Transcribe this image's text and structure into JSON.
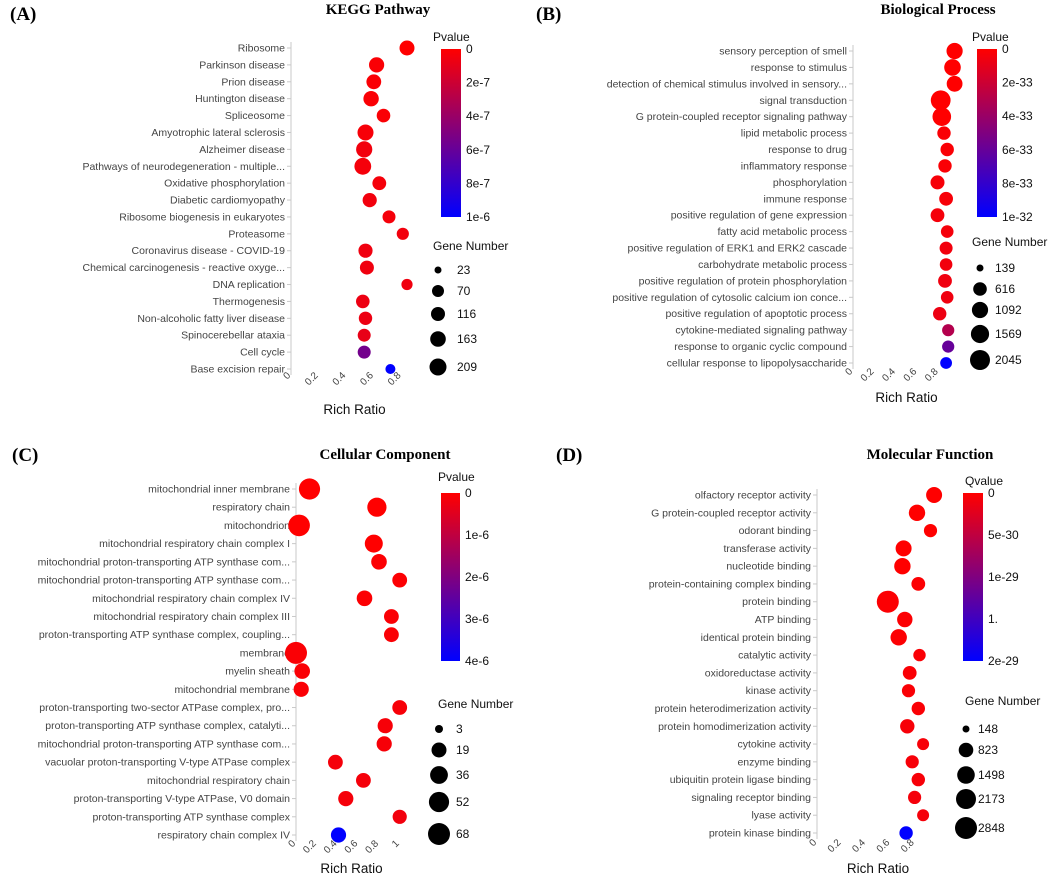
{
  "colors": {
    "low": "#ff0000",
    "high": "#0000ff"
  },
  "chart_data": [
    {
      "type": "scatter",
      "letter": "(A)",
      "title": "KEGG Pathway",
      "xlabel": "Rich Ratio",
      "xlim": [
        0,
        0.92
      ],
      "xticks": [
        "0",
        "0.2",
        "0.4",
        "0.6",
        "0.8"
      ],
      "xtick_values": [
        0,
        0.2,
        0.4,
        0.6,
        0.8
      ],
      "color_legend_title": "Pvalue",
      "color_ticks": [
        "0",
        "2e-7",
        "4e-7",
        "6e-7",
        "8e-7",
        "1e-6"
      ],
      "size_legend_title": "Gene Number",
      "size_legend": [
        "23",
        "70",
        "116",
        "163",
        "209"
      ],
      "size_range": [
        23,
        209
      ],
      "categories": [
        "Ribosome",
        "Parkinson disease",
        "Prion disease",
        "Huntington disease",
        "Spliceosome",
        "Amyotrophic lateral sclerosis",
        "Alzheimer disease",
        "Pathways of neurodegeneration - multiple...",
        "Oxidative phosphorylation",
        "Diabetic cardiomyopathy",
        "Ribosome biogenesis in eukaryotes",
        "Proteasome",
        "Coronavirus disease - COVID-19",
        "Chemical carcinogenesis - reactive oxyge...",
        "DNA replication",
        "Thermogenesis",
        "Non-alcoholic fatty liver disease",
        "Spinocerebellar ataxia",
        "Cell cycle",
        "Base excision repair"
      ],
      "rich_ratio": [
        0.84,
        0.62,
        0.6,
        0.58,
        0.67,
        0.54,
        0.53,
        0.52,
        0.64,
        0.57,
        0.71,
        0.81,
        0.54,
        0.55,
        0.84,
        0.52,
        0.54,
        0.53,
        0.53,
        0.72
      ],
      "gene_number": [
        140,
        150,
        135,
        155,
        105,
        175,
        180,
        205,
        110,
        120,
        90,
        75,
        120,
        115,
        55,
        105,
        100,
        90,
        90,
        40
      ],
      "color_value": [
        0.0,
        0.02,
        0.02,
        0.02,
        0.02,
        0.03,
        0.05,
        0.04,
        0.04,
        0.05,
        0.04,
        0.05,
        0.06,
        0.06,
        0.06,
        0.07,
        0.07,
        0.09,
        0.55,
        1.0
      ]
    },
    {
      "type": "scatter",
      "letter": "(B)",
      "title": "Biological Process",
      "xlabel": "Rich Ratio",
      "xlim": [
        0,
        1.0
      ],
      "xticks": [
        "0",
        "0.2",
        "0.4",
        "0.6",
        "0.8"
      ],
      "xtick_values": [
        0,
        0.2,
        0.4,
        0.6,
        0.8
      ],
      "color_legend_title": "Pvalue",
      "color_ticks": [
        "0",
        "2e-33",
        "4e-33",
        "6e-33",
        "8e-33",
        "1e-32"
      ],
      "size_legend_title": "Gene Number",
      "size_legend": [
        "139",
        "616",
        "1092",
        "1569",
        "2045"
      ],
      "size_range": [
        139,
        2045
      ],
      "categories": [
        "sensory perception of smell",
        "response to stimulus",
        "detection of chemical stimulus involved in sensory...",
        "signal transduction",
        "G protein-coupled receptor signaling pathway",
        "lipid metabolic process",
        "response to drug",
        "inflammatory response",
        "phosphorylation",
        "immune response",
        "positive regulation of gene expression",
        "fatty acid metabolic process",
        "positive regulation of ERK1 and ERK2 cascade",
        "carbohydrate metabolic process",
        "positive regulation of protein phosphorylation",
        "positive regulation of cytosolic calcium ion conce...",
        "positive regulation of apoptotic process",
        "cytokine-mediated signaling pathway",
        "response to organic cyclic compound",
        "cellular response to lipopolysaccharide"
      ],
      "rich_ratio": [
        0.95,
        0.93,
        0.95,
        0.82,
        0.83,
        0.85,
        0.88,
        0.86,
        0.79,
        0.87,
        0.79,
        0.88,
        0.87,
        0.87,
        0.86,
        0.88,
        0.81,
        0.89,
        0.89,
        0.87
      ],
      "gene_number": [
        1100,
        1200,
        1000,
        2000,
        1650,
        600,
        600,
        600,
        700,
        650,
        650,
        500,
        550,
        500,
        650,
        500,
        600,
        450,
        450,
        400
      ],
      "color_value": [
        0.0,
        0.0,
        0.0,
        0.0,
        0.0,
        0.02,
        0.02,
        0.02,
        0.03,
        0.03,
        0.04,
        0.04,
        0.05,
        0.05,
        0.06,
        0.06,
        0.07,
        0.3,
        0.6,
        1.0
      ]
    },
    {
      "type": "scatter",
      "letter": "(C)",
      "title": "Cellular Component",
      "xlabel": "Rich Ratio",
      "xlim": [
        0,
        1.07
      ],
      "xticks": [
        "0",
        "0.2",
        "0.4",
        "0.6",
        "0.8",
        "1"
      ],
      "xtick_values": [
        0,
        0.2,
        0.4,
        0.6,
        0.8,
        1.0
      ],
      "color_legend_title": "Pvalue",
      "color_ticks": [
        "0",
        "1e-6",
        "2e-6",
        "3e-6",
        "4e-6"
      ],
      "size_legend_title": "Gene Number",
      "size_legend": [
        "3",
        "19",
        "36",
        "52",
        "68"
      ],
      "size_range": [
        3,
        68
      ],
      "categories": [
        "mitochondrial inner membrane",
        "respiratory chain",
        "mitochondrion",
        "mitochondrial respiratory chain complex I",
        "mitochondrial proton-transporting ATP synthase com...",
        "mitochondrial proton-transporting ATP synthase com...",
        "mitochondrial respiratory chain complex IV",
        "mitochondrial respiratory chain complex III",
        "proton-transporting ATP synthase complex, coupling...",
        "membrane",
        "myelin sheath",
        "mitochondrial membrane",
        "proton-transporting two-sector ATPase complex, pro...",
        "proton-transporting ATP synthase complex, catalyti...",
        "mitochondrial proton-transporting ATP synthase com...",
        "vacuolar proton-transporting V-type ATPase complex",
        "mitochondrial respiratory chain",
        "proton-transporting V-type ATPase, V0 domain",
        "proton-transporting ATP synthase complex",
        "respiratory chain complex IV"
      ],
      "rich_ratio": [
        0.13,
        0.78,
        0.03,
        0.75,
        0.8,
        1.0,
        0.66,
        0.92,
        0.92,
        0.0,
        0.06,
        0.05,
        1.0,
        0.86,
        0.85,
        0.38,
        0.65,
        0.48,
        1.0,
        0.41
      ],
      "gene_number": [
        60,
        45,
        65,
        36,
        22,
        18,
        22,
        18,
        18,
        68,
        22,
        20,
        18,
        20,
        20,
        18,
        18,
        20,
        16,
        20
      ],
      "color_value": [
        0.0,
        0.0,
        0.0,
        0.0,
        0.01,
        0.01,
        0.01,
        0.02,
        0.02,
        0.02,
        0.02,
        0.02,
        0.03,
        0.03,
        0.03,
        0.04,
        0.04,
        0.04,
        0.05,
        1.0
      ]
    },
    {
      "type": "scatter",
      "letter": "(D)",
      "title": "Molecular Function",
      "xlabel": "Rich Ratio",
      "xlim": [
        0,
        1.0
      ],
      "xticks": [
        "0",
        "0.2",
        "0.4",
        "0.6",
        "0.8"
      ],
      "xtick_values": [
        0,
        0.2,
        0.4,
        0.6,
        0.8
      ],
      "color_legend_title": "Qvalue",
      "color_ticks": [
        "0",
        "5e-30",
        "1e-29",
        "1.",
        "2e-29"
      ],
      "size_legend_title": "Gene Number",
      "size_legend": [
        "148",
        "823",
        "1498",
        "2173",
        "2848"
      ],
      "size_range": [
        148,
        2848
      ],
      "categories": [
        "olfactory receptor activity",
        "G protein-coupled receptor activity",
        "odorant binding",
        "transferase activity",
        "nucleotide binding",
        "protein-containing complex binding",
        "protein binding",
        "ATP binding",
        "identical protein binding",
        "catalytic activity",
        "oxidoreductase activity",
        "kinase activity",
        "protein heterodimerization activity",
        "protein homodimerization activity",
        "cytokine activity",
        "enzyme binding",
        "ubiquitin protein ligase binding",
        "signaling receptor binding",
        "lyase activity",
        "protein kinase binding"
      ],
      "rich_ratio": [
        0.96,
        0.82,
        0.93,
        0.71,
        0.7,
        0.83,
        0.58,
        0.72,
        0.67,
        0.84,
        0.76,
        0.75,
        0.83,
        0.74,
        0.87,
        0.78,
        0.83,
        0.8,
        0.87,
        0.73
      ],
      "gene_number": [
        1100,
        1200,
        600,
        1100,
        1200,
        700,
        2848,
        1000,
        1200,
        500,
        700,
        600,
        650,
        800,
        450,
        600,
        650,
        600,
        450,
        650
      ],
      "color_value": [
        0.0,
        0.0,
        0.0,
        0.0,
        0.0,
        0.01,
        0.01,
        0.01,
        0.01,
        0.02,
        0.02,
        0.02,
        0.02,
        0.03,
        0.03,
        0.03,
        0.03,
        0.04,
        0.04,
        1.0
      ]
    }
  ]
}
